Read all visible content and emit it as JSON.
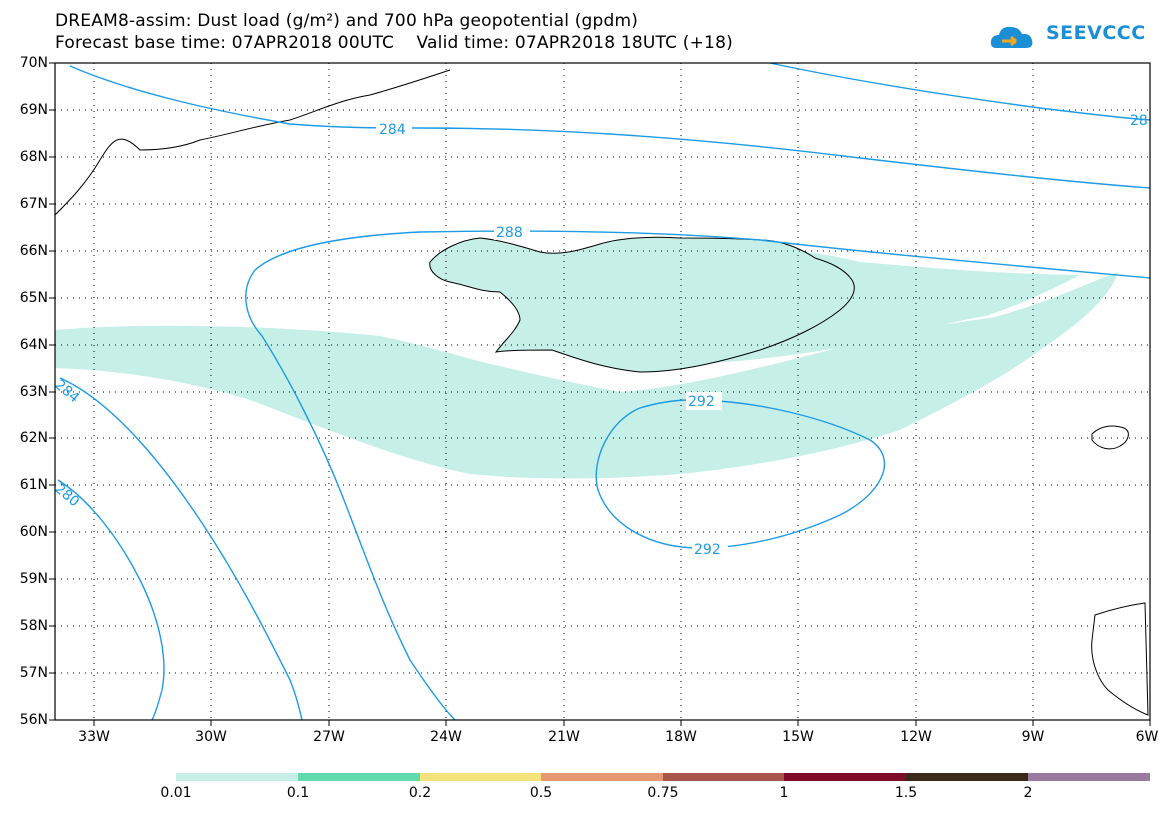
{
  "title_line1": "DREAM8-assim: Dust load (g/m²) and 700 hPa geopotential (gpdm)",
  "title_line2": "Forecast base time: 07APR2018 00UTC    Valid time: 07APR2018 18UTC (+18)",
  "logo_text": "SEEVCCC",
  "lat_labels": [
    "70N",
    "69N",
    "68N",
    "67N",
    "66N",
    "65N",
    "64N",
    "63N",
    "62N",
    "61N",
    "60N",
    "59N",
    "58N",
    "57N",
    "56N"
  ],
  "lon_labels": [
    "33W",
    "30W",
    "27W",
    "24W",
    "21W",
    "18W",
    "15W",
    "12W",
    "9W",
    "6W"
  ],
  "contour_labels": [
    "284",
    "288",
    "292",
    "292",
    "284",
    "280",
    "28"
  ],
  "colorbar": {
    "labels": [
      "0.01",
      "0.1",
      "0.2",
      "0.5",
      "0.75",
      "1",
      "1.5",
      "2"
    ],
    "colors": [
      "#c6efe8",
      "#5fd9ae",
      "#f5e27a",
      "#e89870",
      "#a8564c",
      "#7f0a2a",
      "#3a2a18",
      "#9a7a9e"
    ]
  },
  "colors": {
    "contour": "#1e9be6",
    "dust_light": "#c6efe8",
    "dust_medium": "#5fd9ae",
    "coast": "#000000"
  }
}
